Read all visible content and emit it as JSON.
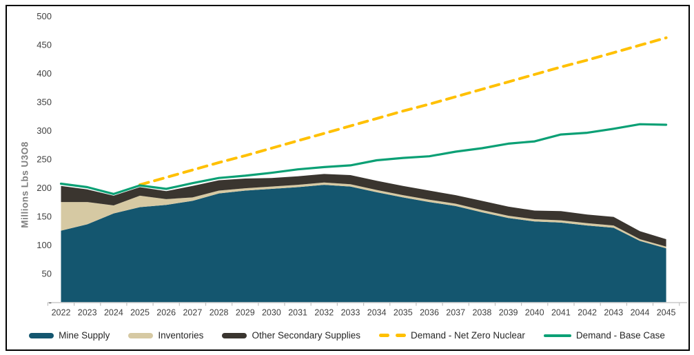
{
  "chart_data": {
    "type": "area",
    "stacked": true,
    "title": "",
    "xlabel": "",
    "ylabel": "Millions Lbs U3O8",
    "ylim": [
      0,
      500
    ],
    "ytick_step": 50,
    "ytick_labels": [
      "-",
      "50",
      "100",
      "150",
      "200",
      "250",
      "300",
      "350",
      "400",
      "450",
      "500"
    ],
    "grid": false,
    "legend_position": "bottom",
    "categories": [
      "2022",
      "2023",
      "2024",
      "2025",
      "2026",
      "2027",
      "2028",
      "2029",
      "2030",
      "2031",
      "2032",
      "2033",
      "2034",
      "2035",
      "2036",
      "2037",
      "2038",
      "2039",
      "2040",
      "2041",
      "2042",
      "2043",
      "2044",
      "2045"
    ],
    "series": [
      {
        "name": "Mine Supply",
        "type": "area",
        "color": "#14566F",
        "values": [
          125,
          136,
          155,
          166,
          170,
          177,
          190,
          195,
          198,
          201,
          205,
          202,
          192,
          183,
          175,
          168,
          157,
          147,
          141,
          139,
          134,
          130,
          107,
          94
        ]
      },
      {
        "name": "Inventories",
        "type": "area",
        "color": "#D6C9A3",
        "values": [
          50,
          39,
          14,
          20,
          10,
          6,
          5,
          4,
          4,
          4,
          4,
          4,
          4,
          4,
          4,
          4,
          4,
          4,
          4,
          4,
          4,
          4,
          3,
          3
        ]
      },
      {
        "name": "Other Secondary Supplies",
        "type": "area",
        "color": "#3A352F",
        "values": [
          28,
          22,
          17,
          15,
          14,
          20,
          18,
          17,
          15,
          15,
          15,
          16,
          16,
          16,
          16,
          15,
          16,
          16,
          15,
          16,
          15,
          15,
          14,
          13
        ]
      },
      {
        "name": "Demand - Net Zero Nuclear",
        "type": "line",
        "style": "dashed",
        "color": "#FFC000",
        "values": [
          null,
          null,
          null,
          205,
          218,
          231,
          244,
          256,
          269,
          282,
          295,
          308,
          321,
          334,
          346,
          359,
          372,
          385,
          398,
          411,
          423,
          436,
          449,
          462
        ]
      },
      {
        "name": "Demand - Base Case",
        "type": "line",
        "style": "solid",
        "color": "#0BA075",
        "values": [
          207,
          201,
          189,
          204,
          198,
          208,
          217,
          221,
          226,
          232,
          236,
          239,
          248,
          252,
          255,
          263,
          269,
          277,
          281,
          293,
          296,
          303,
          311,
          310
        ]
      }
    ]
  },
  "legend": {
    "items": [
      {
        "label": "Mine Supply",
        "color": "#14566F",
        "swatch": "bar"
      },
      {
        "label": "Inventories",
        "color": "#D6C9A3",
        "swatch": "bar"
      },
      {
        "label": "Other Secondary Supplies",
        "color": "#3A352F",
        "swatch": "bar"
      },
      {
        "label": "Demand - Net Zero Nuclear",
        "color": "#FFC000",
        "swatch": "dashes"
      },
      {
        "label": "Demand - Base Case",
        "color": "#0BA075",
        "swatch": "line"
      }
    ]
  }
}
